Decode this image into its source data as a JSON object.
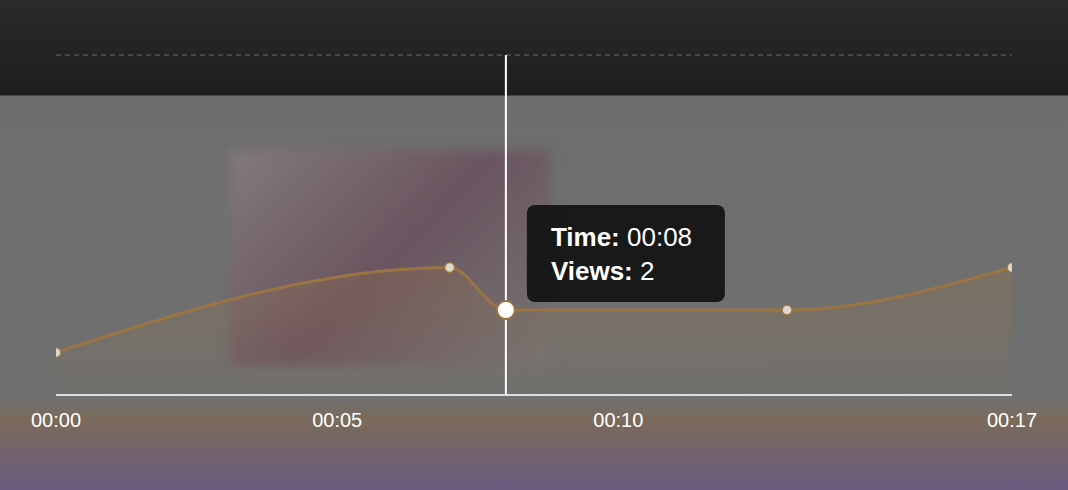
{
  "chart_data": {
    "type": "area",
    "x": [
      0,
      7,
      8,
      13,
      17
    ],
    "values": [
      1,
      3,
      2,
      2,
      3
    ],
    "color": "#9b7443",
    "marker": "circle",
    "xlim": [
      0,
      17
    ],
    "xticks": [
      {
        "value": 0,
        "label": "00:00"
      },
      {
        "value": 5,
        "label": "00:05"
      },
      {
        "value": 10,
        "label": "00:10"
      },
      {
        "value": 17,
        "label": "00:17"
      }
    ],
    "ylim": [
      0,
      8
    ],
    "yticks": [
      0,
      2,
      4,
      6,
      8
    ],
    "grid": true,
    "tick_labels": "x",
    "tooltip": {
      "x": 8,
      "y": 2,
      "lines": [
        {
          "label": "Time:",
          "value": "00:08"
        },
        {
          "label": "Views:",
          "value": 2
        }
      ]
    }
  }
}
